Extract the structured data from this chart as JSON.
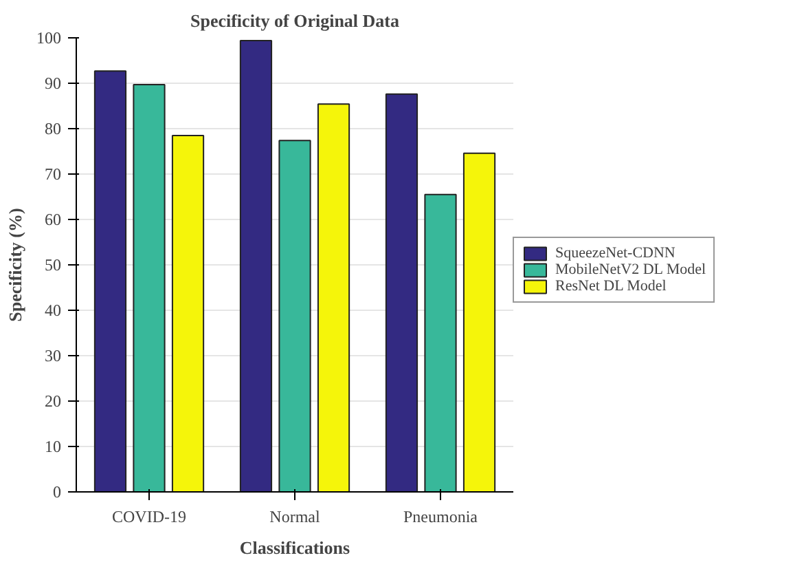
{
  "chart_data": {
    "type": "bar",
    "title": "Specificity of Original Data",
    "xlabel": "Classifications",
    "ylabel": "Specificity (%)",
    "categories": [
      "COVID-19",
      "Normal",
      "Pneumonia"
    ],
    "series": [
      {
        "name": "SqueezeNet-CDNN",
        "color": "#332a82",
        "values": [
          92.7,
          99.4,
          87.6
        ]
      },
      {
        "name": "MobileNetV2 DL Model",
        "color": "#38b89a",
        "values": [
          89.7,
          77.4,
          65.5
        ]
      },
      {
        "name": "ResNet DL Model",
        "color": "#f5f50a",
        "values": [
          78.5,
          85.4,
          74.6
        ]
      }
    ],
    "ylim": [
      0,
      100
    ],
    "yticks": [
      0,
      10,
      20,
      30,
      40,
      50,
      60,
      70,
      80,
      90,
      100
    ],
    "grid": "y",
    "legend": "right"
  }
}
